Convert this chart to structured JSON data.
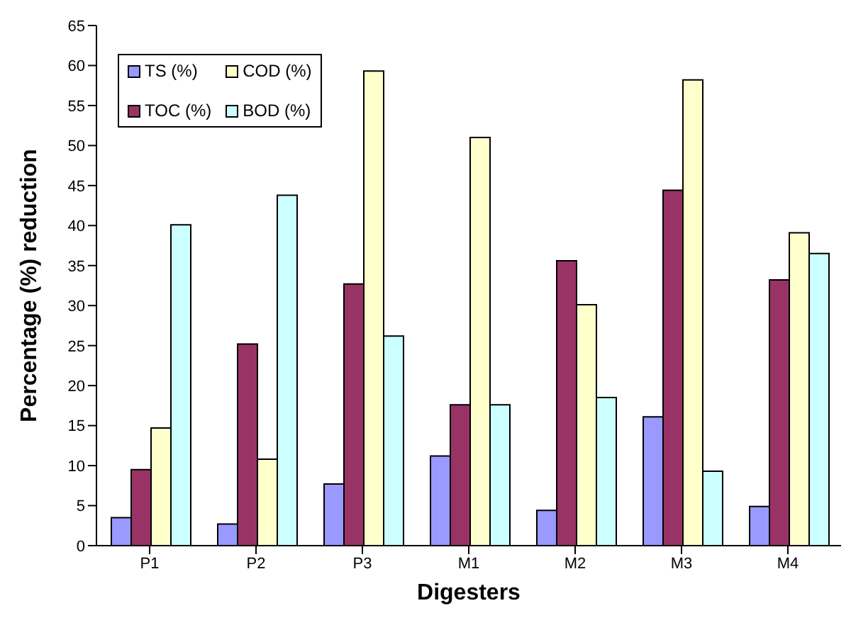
{
  "chart_data": {
    "type": "bar",
    "xlabel": "Digesters",
    "ylabel": "Percentage (%) reduction",
    "categories": [
      "P1",
      "P2",
      "P3",
      "M1",
      "M2",
      "M3",
      "M4"
    ],
    "series": [
      {
        "name": "TS (%)",
        "color": "#9999ff",
        "values": [
          3.5,
          2.7,
          7.7,
          11.2,
          4.4,
          16.1,
          4.9
        ]
      },
      {
        "name": "TOC (%)",
        "color": "#993366",
        "values": [
          9.5,
          25.2,
          32.7,
          17.6,
          35.6,
          44.4,
          33.2
        ]
      },
      {
        "name": "COD (%)",
        "color": "#ffffcc",
        "values": [
          14.7,
          10.8,
          59.3,
          51.0,
          30.1,
          58.2,
          39.1
        ]
      },
      {
        "name": "BOD (%)",
        "color": "#ccffff",
        "values": [
          40.1,
          43.8,
          26.2,
          17.6,
          18.5,
          9.3,
          36.5
        ]
      }
    ],
    "ylim": [
      0,
      65
    ],
    "yticks": [
      0,
      5,
      10,
      15,
      20,
      25,
      30,
      35,
      40,
      45,
      50,
      55,
      60,
      65
    ],
    "grid": false,
    "legend": "top left"
  }
}
